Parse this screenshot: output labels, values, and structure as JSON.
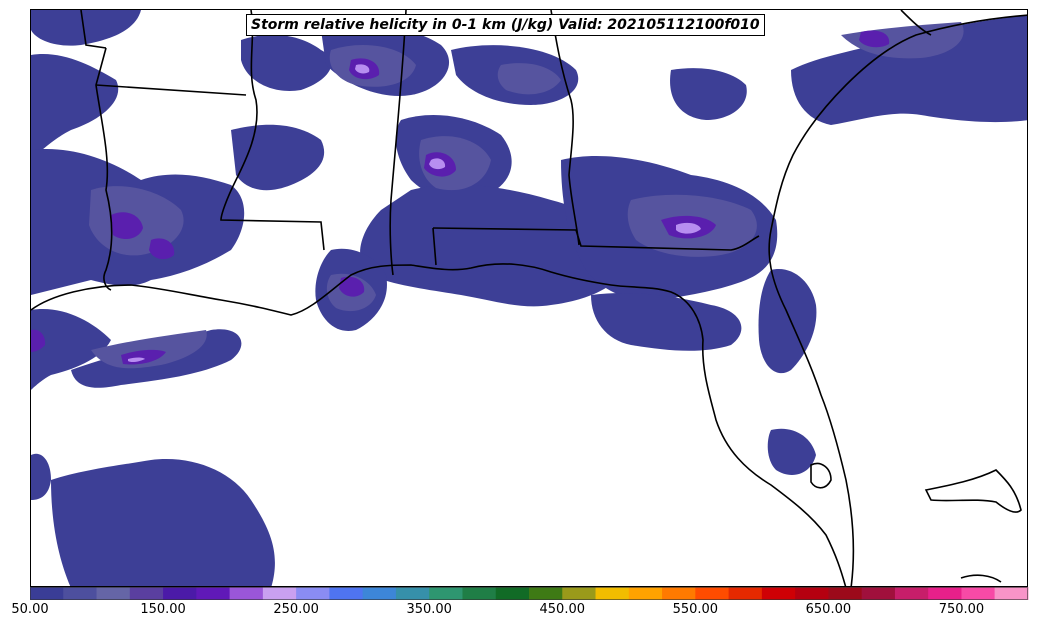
{
  "title": "Storm relative helicity in 0-1 km (J/kg) Valid: 202105112100f010",
  "colorbar": {
    "min": 50,
    "max": 800,
    "step": 25,
    "extend": "max",
    "tick_labels": [
      "50.00",
      "150.00",
      "250.00",
      "350.00",
      "450.00",
      "550.00",
      "650.00",
      "750.00"
    ],
    "colors": [
      "#3a3d96",
      "#4d4f9e",
      "#6565a6",
      "#5a3f9f",
      "#4b1aa8",
      "#6019b8",
      "#9a56d8",
      "#c9a0f0",
      "#8a8cf3",
      "#4f74f0",
      "#3d86d8",
      "#3690aa",
      "#2e9670",
      "#1f7e46",
      "#116b26",
      "#3e7a15",
      "#9a9a1a",
      "#f2bd00",
      "#ffa200",
      "#ff7a00",
      "#ff4c00",
      "#e62900",
      "#cf0005",
      "#b50010",
      "#9c0a1a",
      "#a0103c",
      "#c71e6a",
      "#e8208a",
      "#f74aa6",
      "#f894c8"
    ]
  },
  "map_layers": {
    "srh_fill_colors": {
      "low": "#3d3f96",
      "mid": "#56549f",
      "high": "#5a1fae",
      "peak": "#b78ef0"
    },
    "boundaries_color": "#000000"
  }
}
